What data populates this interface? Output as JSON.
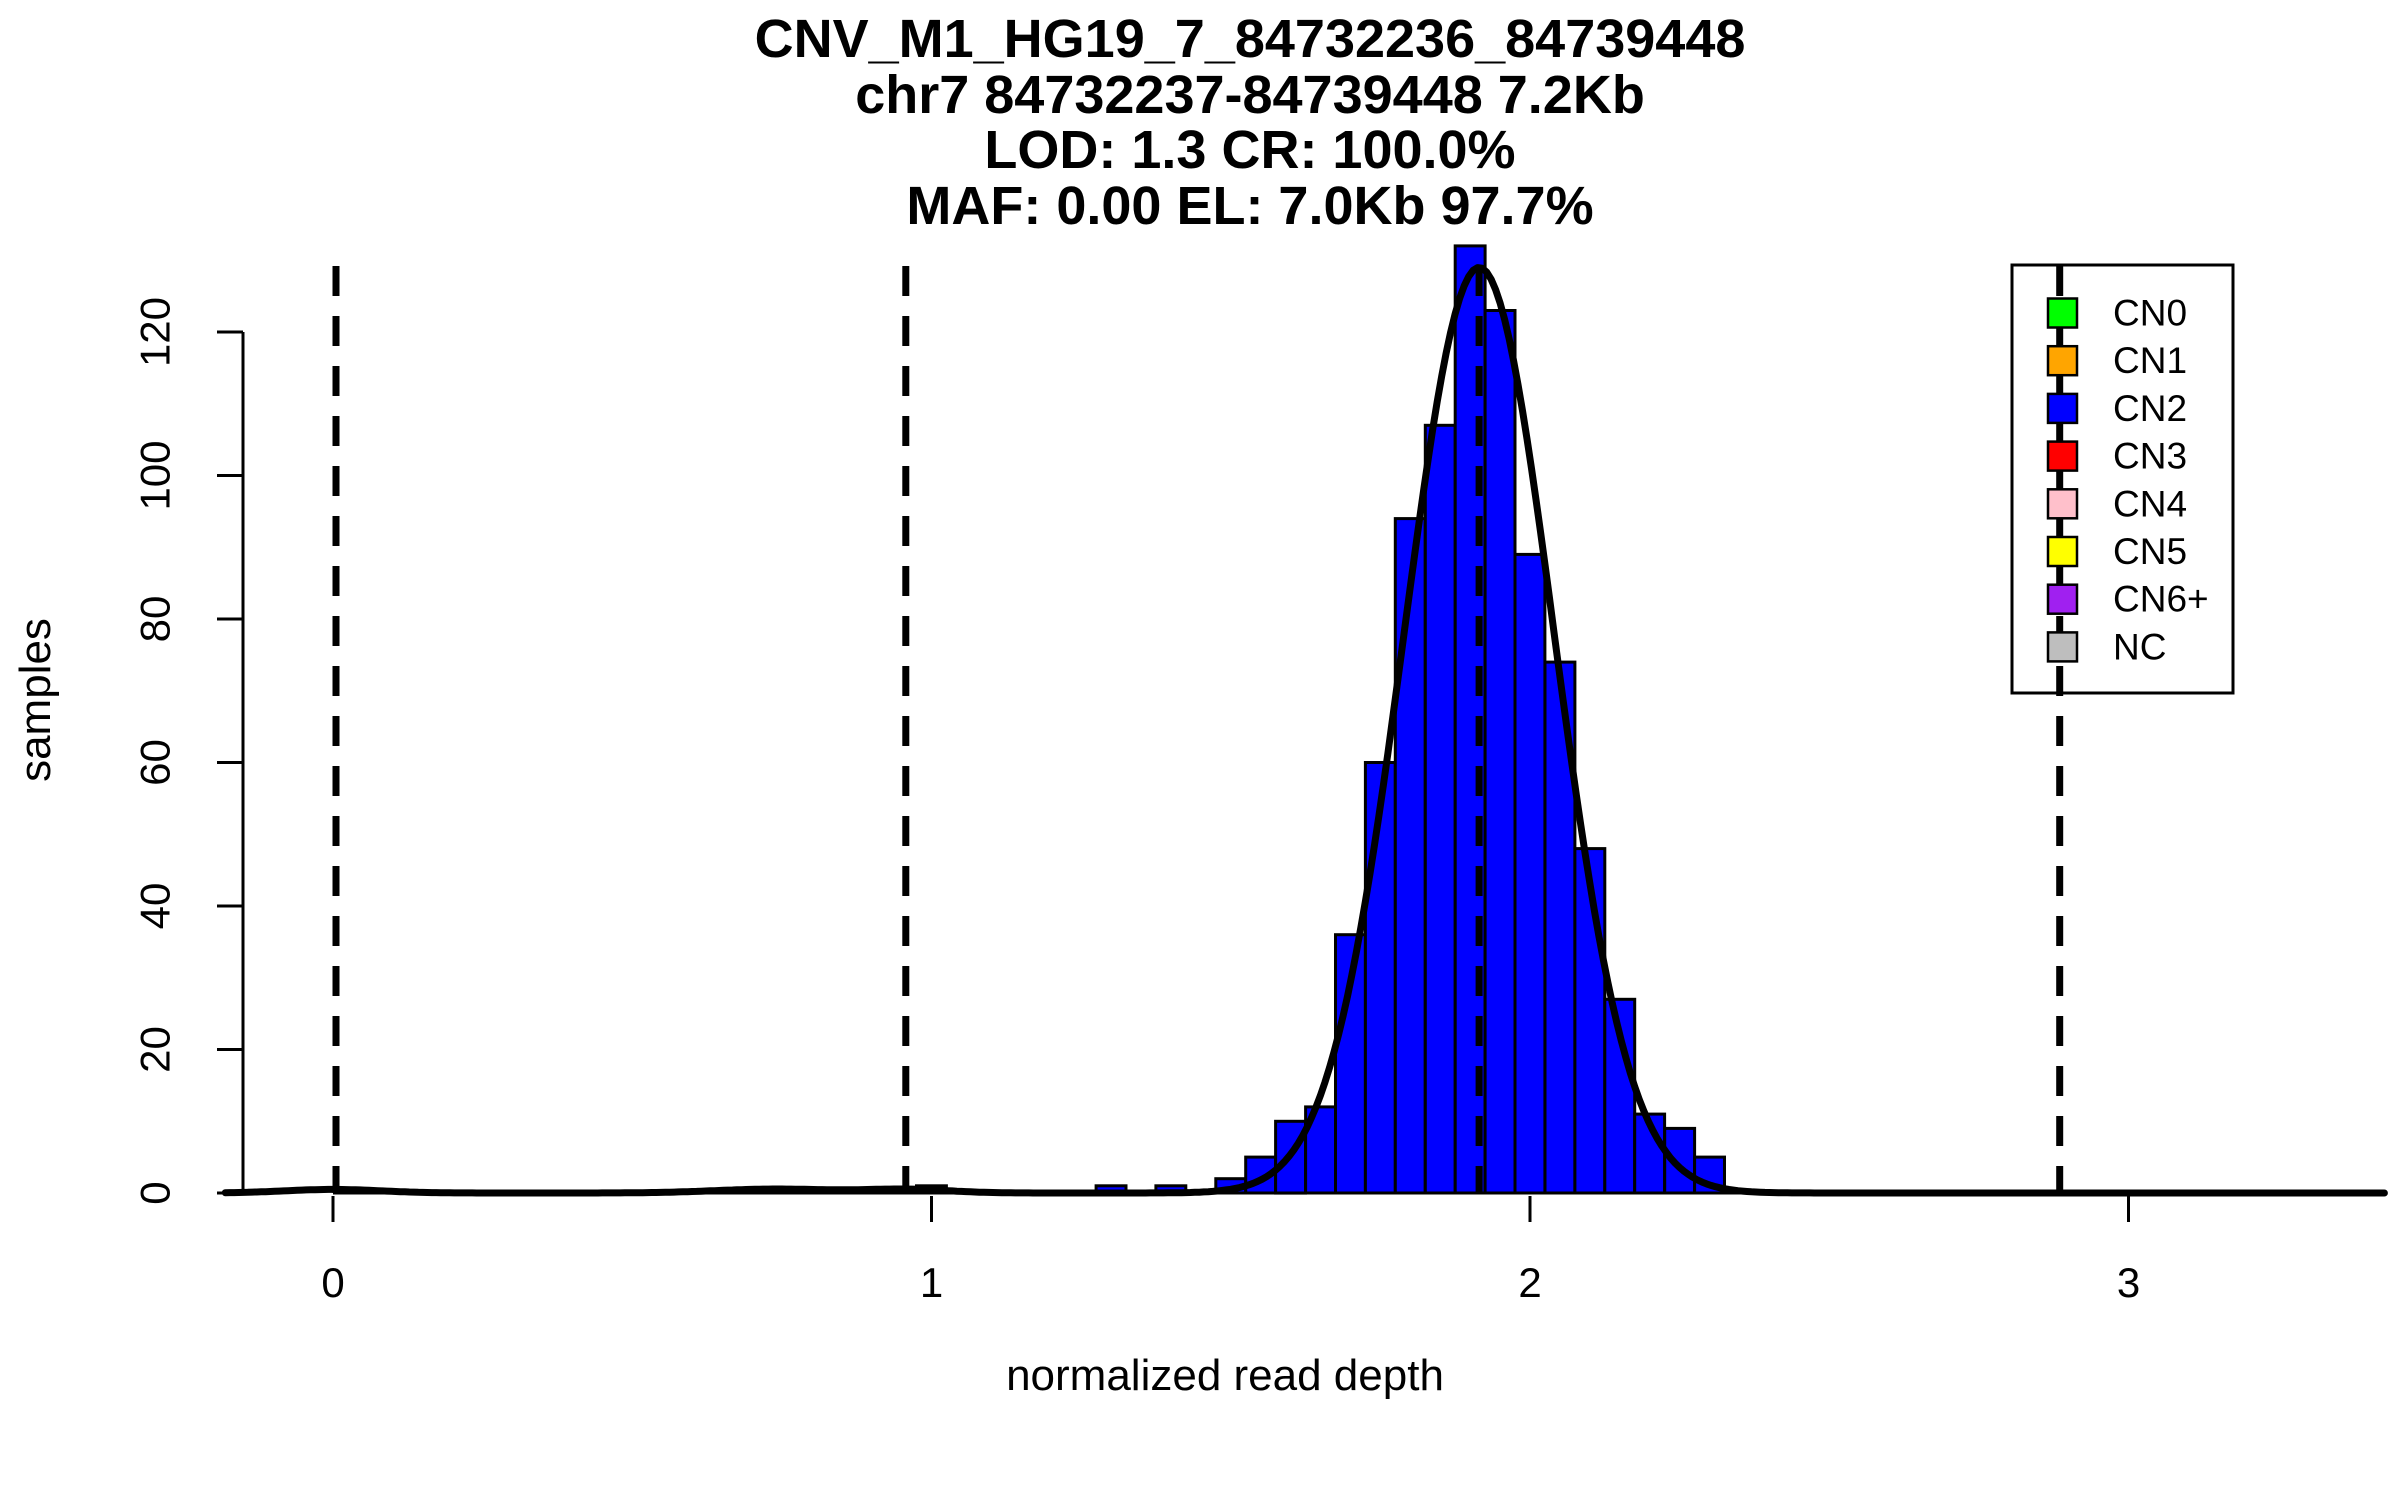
{
  "figure": {
    "background": "#FFFFFF"
  },
  "chart_data": {
    "type": "bar",
    "subtype": "histogram-with-density-curve",
    "title_lines": [
      "CNV_M1_HG19_7_84732236_84739448",
      "chr7 84732237-84739448 7.2Kb",
      "LOD: 1.3 CR: 100.0%",
      "MAF: 0.00 EL: 7.0Kb 97.7%"
    ],
    "xlabel": "normalized read depth",
    "ylabel": "samples",
    "x_ticks": [
      0,
      1,
      2,
      3
    ],
    "y_ticks": [
      0,
      20,
      40,
      60,
      80,
      100,
      120
    ],
    "xlim": [
      -0.18,
      3.43
    ],
    "ylim": [
      0,
      135
    ],
    "grid": false,
    "bin_width": 0.05,
    "bar_fill": "#0000FF",
    "bar_stroke": "#000000",
    "bins": [
      {
        "x0": 0.975,
        "x1": 1.025,
        "count": 1
      },
      {
        "x0": 1.275,
        "x1": 1.325,
        "count": 1
      },
      {
        "x0": 1.375,
        "x1": 1.425,
        "count": 1
      },
      {
        "x0": 1.475,
        "x1": 1.525,
        "count": 2
      },
      {
        "x0": 1.525,
        "x1": 1.575,
        "count": 5
      },
      {
        "x0": 1.575,
        "x1": 1.625,
        "count": 10
      },
      {
        "x0": 1.625,
        "x1": 1.675,
        "count": 12
      },
      {
        "x0": 1.675,
        "x1": 1.725,
        "count": 36
      },
      {
        "x0": 1.725,
        "x1": 1.775,
        "count": 60
      },
      {
        "x0": 1.775,
        "x1": 1.825,
        "count": 94
      },
      {
        "x0": 1.825,
        "x1": 1.875,
        "count": 107
      },
      {
        "x0": 1.875,
        "x1": 1.925,
        "count": 132
      },
      {
        "x0": 1.925,
        "x1": 1.975,
        "count": 123
      },
      {
        "x0": 1.975,
        "x1": 2.025,
        "count": 89
      },
      {
        "x0": 2.025,
        "x1": 2.075,
        "count": 74
      },
      {
        "x0": 2.075,
        "x1": 2.125,
        "count": 48
      },
      {
        "x0": 2.125,
        "x1": 2.175,
        "count": 27
      },
      {
        "x0": 2.175,
        "x1": 2.225,
        "count": 11
      },
      {
        "x0": 2.225,
        "x1": 2.275,
        "count": 9
      },
      {
        "x0": 2.275,
        "x1": 2.325,
        "count": 5
      }
    ],
    "density_curve": {
      "color": "#000000",
      "components": [
        {
          "mu": 1.915,
          "sd": 0.125,
          "peak": 129
        },
        {
          "mu": 0.96,
          "sd": 0.07,
          "peak": 0.5
        },
        {
          "mu": 0.74,
          "sd": 0.1,
          "peak": 0.55
        },
        {
          "mu": 0.0,
          "sd": 0.08,
          "peak": 0.5
        }
      ]
    },
    "vlines": {
      "style": "dashed",
      "color": "#000000",
      "x": [
        0.005,
        0.957,
        1.915,
        2.885
      ]
    },
    "legend": {
      "position": "top-right",
      "items": [
        {
          "label": "CN0",
          "color": "#00FF00"
        },
        {
          "label": "CN1",
          "color": "#FFA500"
        },
        {
          "label": "CN2",
          "color": "#0000FF"
        },
        {
          "label": "CN3",
          "color": "#FF0000"
        },
        {
          "label": "CN4",
          "color": "#FFC0CB"
        },
        {
          "label": "CN5",
          "color": "#FFFF00"
        },
        {
          "label": "CN6+",
          "color": "#A020F0"
        },
        {
          "label": "NC",
          "color": "#BEBEBE"
        }
      ]
    }
  }
}
